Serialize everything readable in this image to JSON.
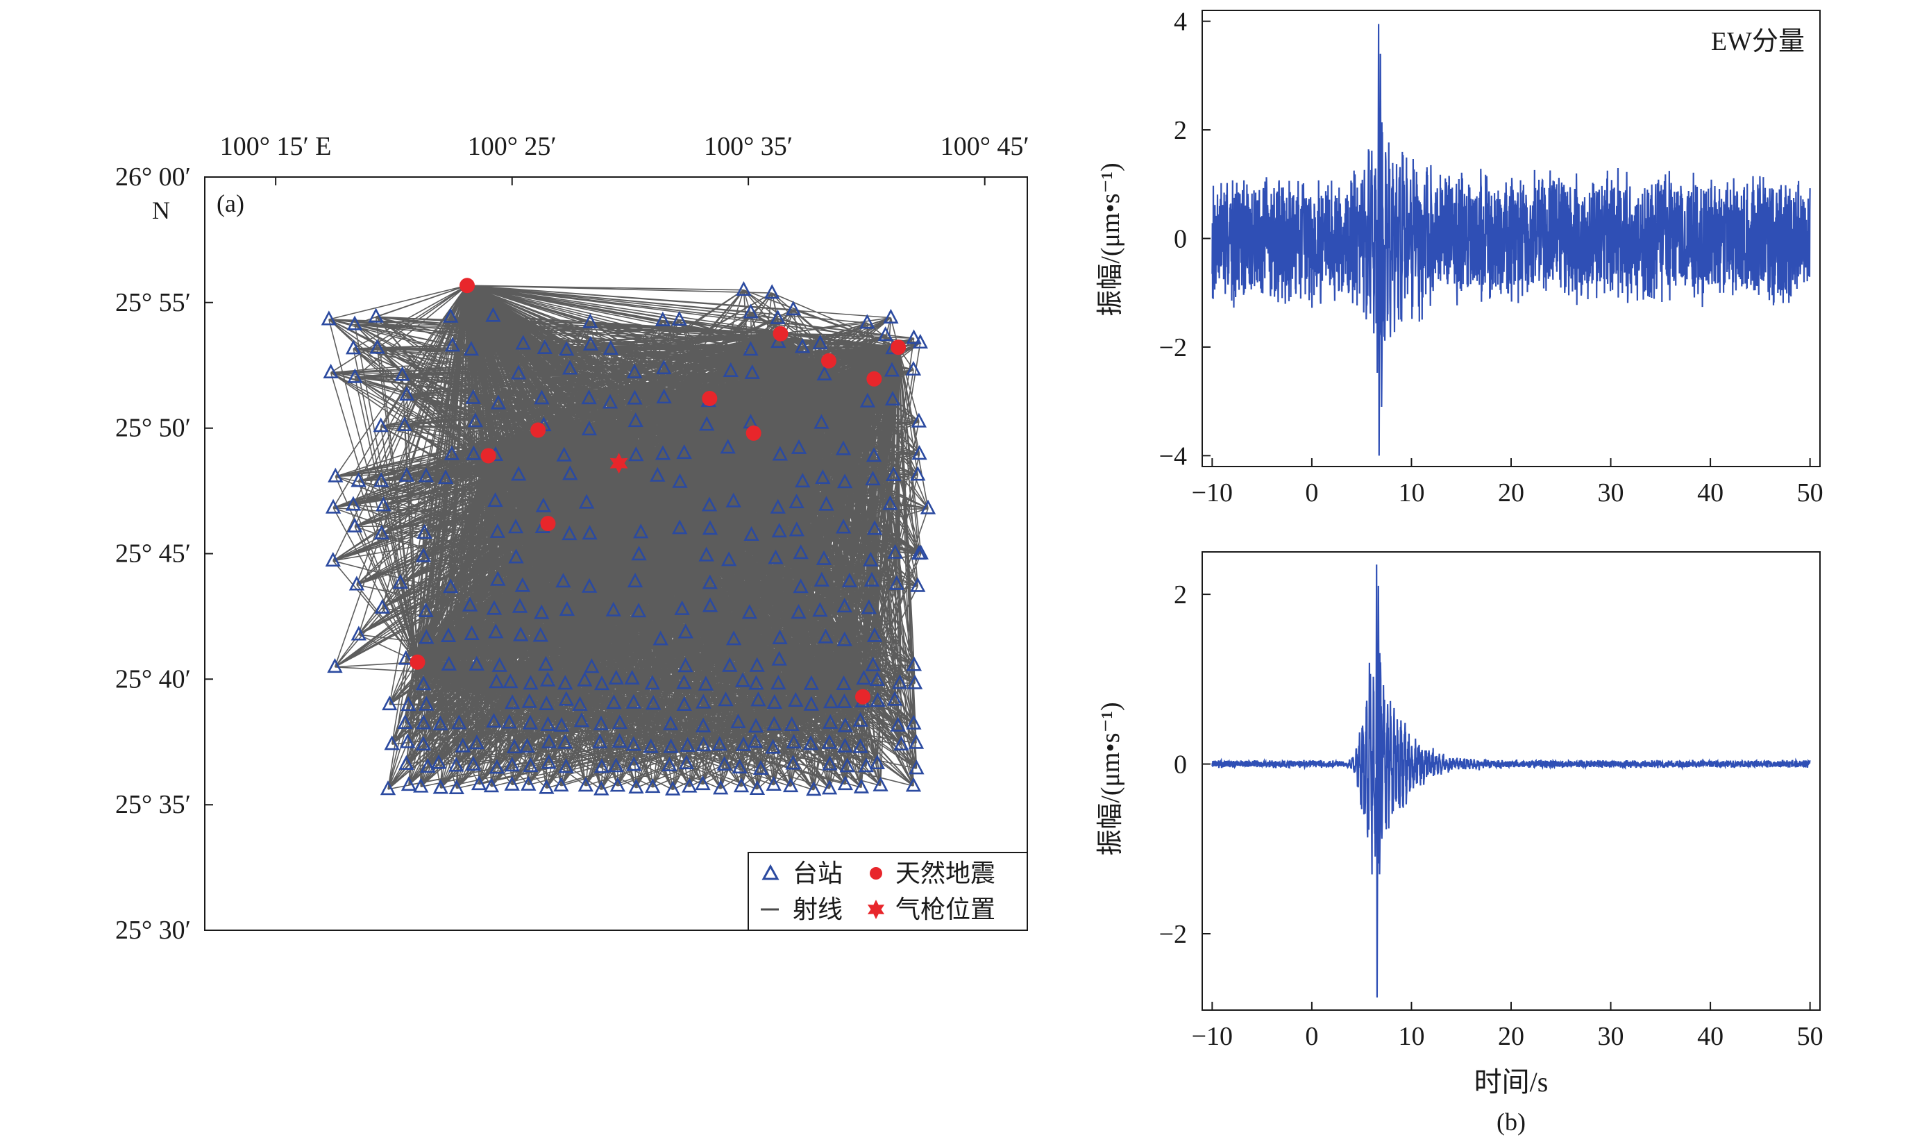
{
  "chart_data": [
    {
      "type": "map",
      "panel_label": "(a)",
      "lon_ticks": [
        {
          "value": 100.25,
          "label": "100° 15′ E"
        },
        {
          "value": 100.4167,
          "label": "100° 25′"
        },
        {
          "value": 100.5833,
          "label": "100° 35′"
        },
        {
          "value": 100.75,
          "label": "100° 45′"
        }
      ],
      "lat_ticks": [
        {
          "value": 26.0,
          "label": "26° 00′"
        },
        {
          "value": 25.9167,
          "label": "25° 55′"
        },
        {
          "value": 25.8333,
          "label": "25° 50′"
        },
        {
          "value": 25.75,
          "label": "25° 45′"
        },
        {
          "value": 25.6667,
          "label": "25° 40′"
        },
        {
          "value": 25.5833,
          "label": "25° 35′"
        },
        {
          "value": 25.5,
          "label": "25° 30′"
        }
      ],
      "north_label": "N",
      "xlim": [
        100.2,
        100.78
      ],
      "ylim": [
        25.5,
        26.0
      ],
      "stations_grid": {
        "lon_range": [
          100.29,
          100.71
        ],
        "lat_range_main": [
          25.665,
          25.905
        ],
        "lat_range_south": [
          25.595,
          25.665
        ],
        "lon_range_south": [
          100.33,
          100.71
        ],
        "step_lon": 0.0165,
        "step_lat": 0.0175
      },
      "earthquakes": [
        {
          "lon": 100.385,
          "lat": 25.928
        },
        {
          "lon": 100.4,
          "lat": 25.815
        },
        {
          "lon": 100.435,
          "lat": 25.832
        },
        {
          "lon": 100.442,
          "lat": 25.77
        },
        {
          "lon": 100.35,
          "lat": 25.678
        },
        {
          "lon": 100.556,
          "lat": 25.853
        },
        {
          "lon": 100.587,
          "lat": 25.83
        },
        {
          "lon": 100.606,
          "lat": 25.896
        },
        {
          "lon": 100.64,
          "lat": 25.878
        },
        {
          "lon": 100.672,
          "lat": 25.866
        },
        {
          "lon": 100.689,
          "lat": 25.887
        },
        {
          "lon": 100.664,
          "lat": 25.655
        }
      ],
      "airgun": {
        "lon": 100.492,
        "lat": 25.81
      },
      "legend": {
        "station": "台站",
        "earthquake": "天然地震",
        "ray": "射线",
        "airgun": "气枪位置"
      },
      "colors": {
        "station": "#2b4aa0",
        "earthquake": "#e8262b",
        "ray": "#4a4a4a"
      }
    },
    {
      "type": "line",
      "panel_label": "(b)",
      "series_color": "#2f4fb5",
      "subplots": [
        {
          "annotation": "EW分量",
          "ylabel": "振幅/(μm•s⁻¹)",
          "xlim": [
            -11,
            51
          ],
          "ylim": [
            -4.2,
            4.2
          ],
          "xticks": [
            -10,
            0,
            10,
            20,
            30,
            40,
            50
          ],
          "xtick_labels": [
            "−10",
            "0",
            "10",
            "20",
            "30",
            "40",
            "50"
          ],
          "yticks": [
            4,
            2,
            0,
            -2,
            -4
          ],
          "ytick_labels": [
            "4",
            "2",
            "0",
            "−2",
            "−4"
          ],
          "x_start": -10,
          "x_end": 50,
          "noise_level": 1.3,
          "event_time": 6.7,
          "event_peaks": [
            3.95,
            -4.0,
            3.4,
            -3.1
          ],
          "seed": 7
        },
        {
          "annotation": "",
          "ylabel": "振幅/(μm•s⁻¹)",
          "xlabel": "时间/s",
          "xlim": [
            -11,
            51
          ],
          "ylim": [
            -2.9,
            2.5
          ],
          "xticks": [
            -10,
            0,
            10,
            20,
            30,
            40,
            50
          ],
          "xtick_labels": [
            "−10",
            "0",
            "10",
            "20",
            "30",
            "40",
            "50"
          ],
          "yticks": [
            2,
            0,
            -2
          ],
          "ytick_labels": [
            "2",
            "0",
            "−2"
          ],
          "x_start": -10,
          "x_end": 50,
          "noise_level": 0.05,
          "event_time": 6.5,
          "event_peaks": [
            2.35,
            -2.75,
            2.1,
            -1.3
          ],
          "seed": 13
        }
      ]
    }
  ]
}
